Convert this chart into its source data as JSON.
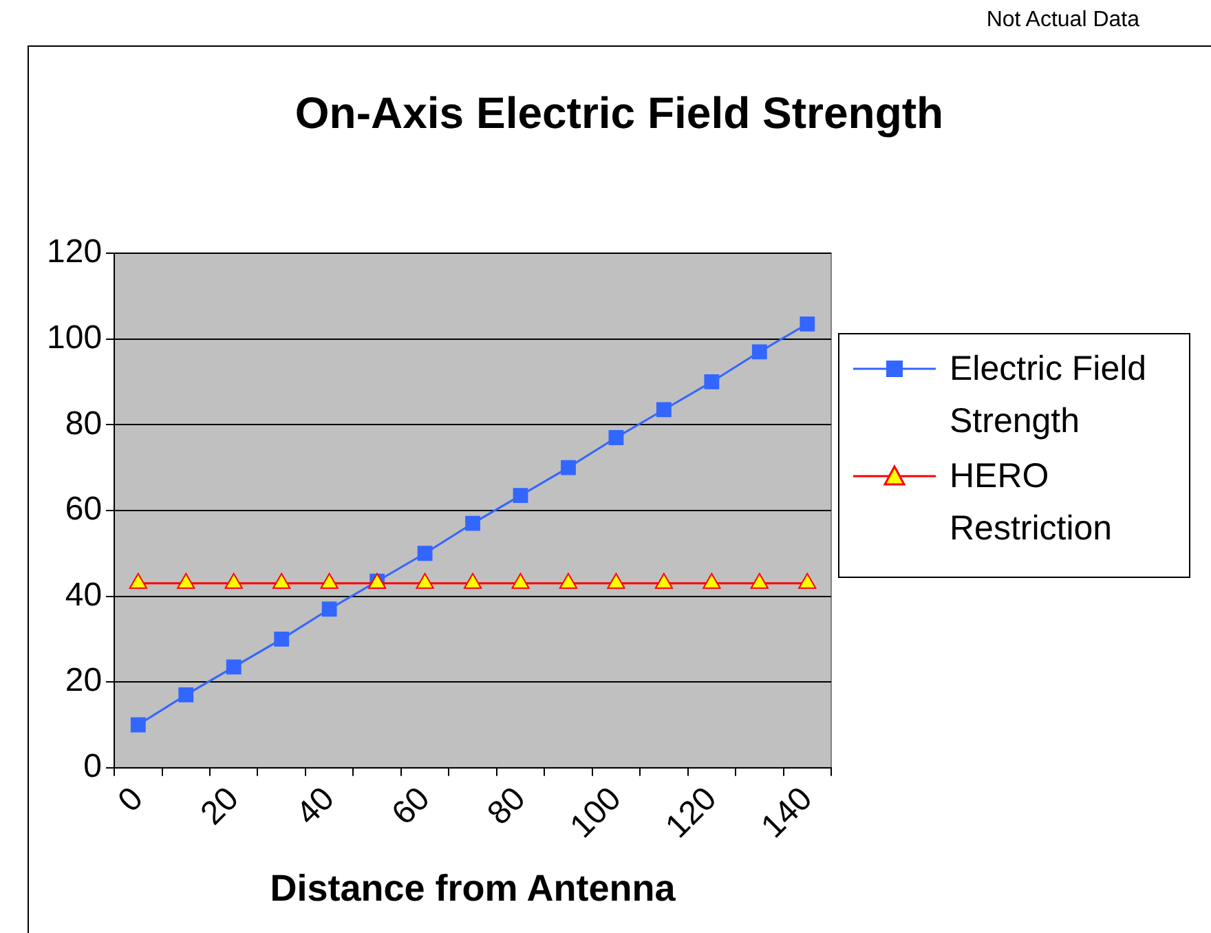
{
  "chart_data": {
    "type": "line",
    "title": "On-Axis Electric Field Strength",
    "xlabel": "Distance from Antenna",
    "annotations": [
      "Not Actual Data"
    ],
    "categories": [
      "0",
      null,
      "20",
      null,
      "40",
      null,
      "60",
      null,
      "80",
      null,
      "100",
      null,
      "120",
      null,
      "140"
    ],
    "series": [
      {
        "name": "Electric Field Strength",
        "color": "#3366ff",
        "marker": "square",
        "values": [
          10,
          17,
          23.5,
          30,
          37,
          43.5,
          50,
          57,
          63.5,
          70,
          77,
          83.5,
          90,
          97,
          103.5
        ]
      },
      {
        "name": "HERO Restriction",
        "color": "#ff0000",
        "marker": "triangle",
        "values": [
          43,
          43,
          43,
          43,
          43,
          43,
          43,
          43,
          43,
          43,
          43,
          43,
          43,
          43,
          43
        ]
      }
    ],
    "ylim": [
      0,
      120
    ],
    "yticks": [
      0,
      20,
      40,
      60,
      80,
      100,
      120
    ],
    "grid": "y",
    "legend": "right"
  }
}
